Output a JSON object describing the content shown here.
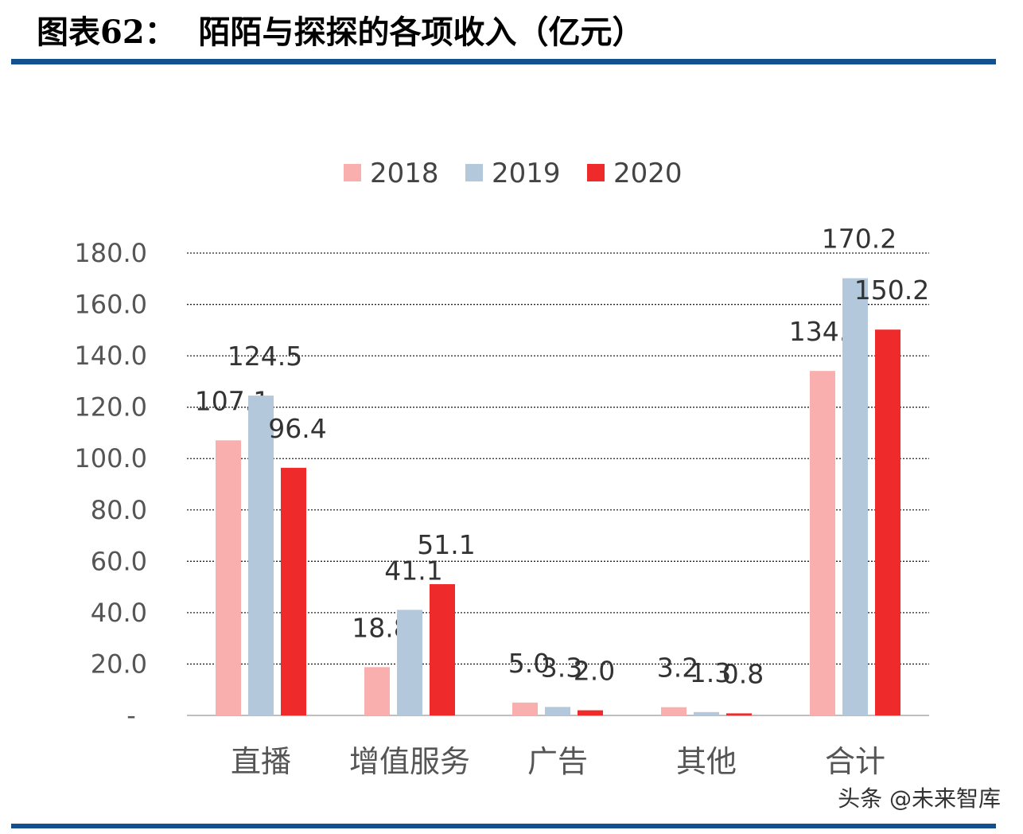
{
  "title": "图表62：  陌陌与探探的各项收入（亿元）",
  "watermark": "头条 @未来智库",
  "colors": {
    "rule": "#13508f",
    "2018": "#f8afae",
    "2019": "#b3c9db",
    "2020": "#ee2a2a"
  },
  "chart_data": {
    "type": "bar",
    "title": "",
    "xlabel": "",
    "ylabel": "",
    "categories": [
      "直播",
      "增值服务",
      "广告",
      "其他",
      "合计"
    ],
    "series": [
      {
        "name": "2018",
        "values": [
          107.1,
          18.8,
          5.0,
          3.2,
          134.1
        ],
        "labels": [
          "107.1",
          "18.8",
          "5.0",
          "3.2",
          "134.1"
        ]
      },
      {
        "name": "2019",
        "values": [
          124.5,
          41.1,
          3.3,
          1.3,
          170.2
        ],
        "labels": [
          "124.5",
          "41.1",
          "3.3",
          "1.3",
          "170.2"
        ]
      },
      {
        "name": "2020",
        "values": [
          96.4,
          51.1,
          2.0,
          0.8,
          150.2
        ],
        "labels": [
          "96.4",
          "51.1",
          "2.0",
          "0.8",
          "150.2"
        ]
      }
    ],
    "ylim": [
      0,
      180
    ],
    "yticks": [
      0,
      20,
      40,
      60,
      80,
      100,
      120,
      140,
      160,
      180
    ],
    "ytick_labels": [
      "-",
      "20.0",
      "40.0",
      "60.0",
      "80.0",
      "100.0",
      "120.0",
      "140.0",
      "160.0",
      "180.0"
    ],
    "grid": true,
    "legend": "top"
  }
}
